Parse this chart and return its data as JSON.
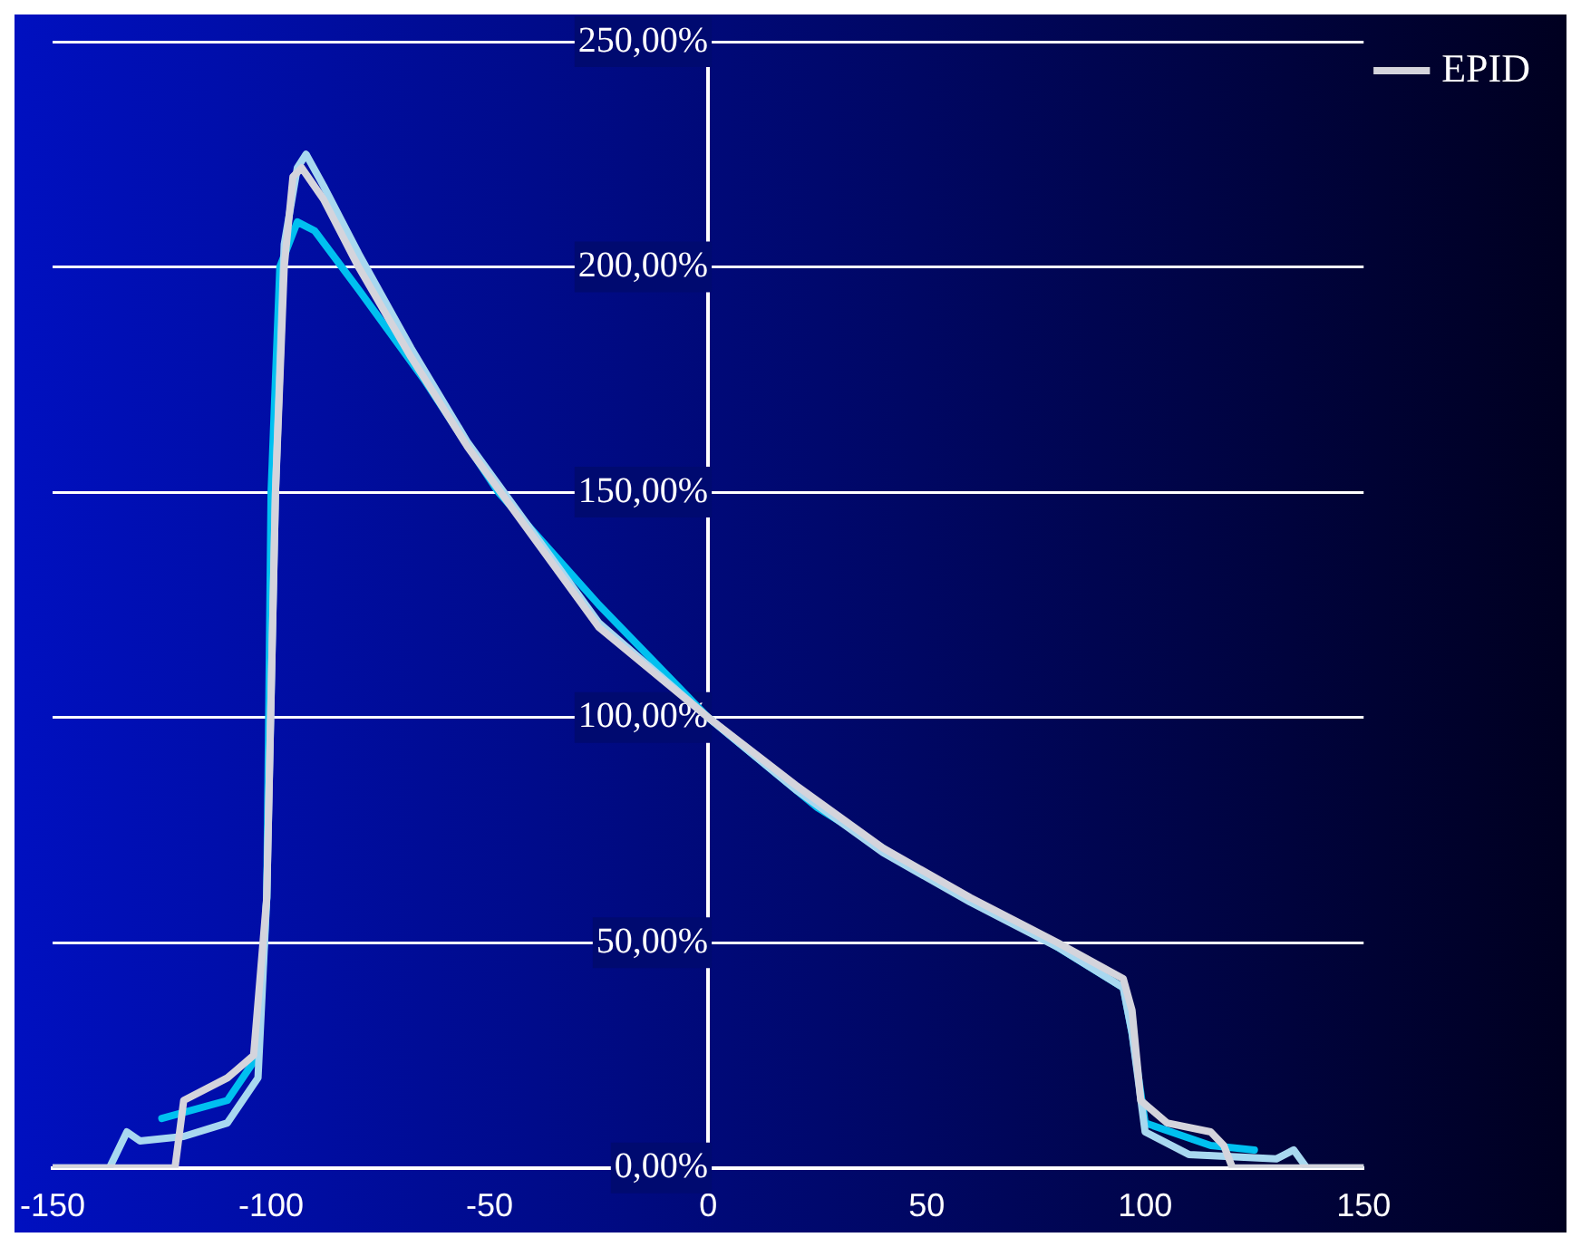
{
  "chart_data": {
    "type": "line",
    "xlim": [
      -150,
      150
    ],
    "xticks": [
      -150,
      -100,
      -50,
      0,
      50,
      100,
      150
    ],
    "ylim": [
      0,
      250
    ],
    "yticks": [
      {
        "value": 0,
        "label": "0,00%"
      },
      {
        "value": 50,
        "label": "50,00%"
      },
      {
        "value": 100,
        "label": "100,00%"
      },
      {
        "value": 150,
        "label": "150,00%"
      },
      {
        "value": 200,
        "label": "200,00%"
      },
      {
        "value": 250,
        "label": "250,00%"
      }
    ],
    "grid": "y",
    "legend": "right",
    "marker": "none",
    "line_style": "solid",
    "series": [
      {
        "name": "EPID",
        "color": "#d4d4dc",
        "x": [
          -150,
          -122,
          -120,
          -110,
          -104,
          -101,
          -99,
          -97,
          -95,
          -93,
          -88,
          -80,
          -68,
          -55,
          -40,
          -25,
          0,
          20,
          40,
          60,
          80,
          95,
          97,
          99,
          105,
          115,
          118,
          120,
          150
        ],
        "values": [
          0,
          0,
          15,
          20,
          25,
          60,
          150,
          200,
          220,
          222,
          215,
          200,
          180,
          160,
          140,
          120,
          100,
          85,
          71,
          60,
          50,
          42,
          35,
          15,
          10,
          8,
          5,
          0,
          0
        ]
      },
      {
        "color": "#a8d8f0",
        "x": [
          -150,
          -137,
          -133,
          -130,
          -120,
          -110,
          -103,
          -101,
          -99,
          -97,
          -94,
          -92,
          -88,
          -80,
          -68,
          -55,
          -40,
          -25,
          0,
          20,
          40,
          60,
          80,
          95,
          97,
          100,
          110,
          130,
          134,
          137,
          150
        ],
        "values": [
          0,
          0,
          8,
          6,
          7,
          10,
          20,
          60,
          150,
          205,
          222,
          225,
          218,
          203,
          182,
          161,
          141,
          121,
          100,
          84,
          70,
          59,
          49,
          40,
          30,
          8,
          3,
          2,
          4,
          0,
          0
        ]
      },
      {
        "color": "#00c0f0",
        "x": [
          -125,
          -110,
          -103,
          -101,
          -100,
          -98,
          -94,
          -90,
          -80,
          -65,
          -48,
          -25,
          0,
          25,
          50,
          75,
          95,
          97,
          100,
          115,
          125
        ],
        "values": [
          11,
          15,
          25,
          60,
          150,
          200,
          210,
          208,
          195,
          175,
          150,
          125,
          100,
          80,
          65,
          52,
          40,
          30,
          10,
          5,
          4
        ]
      }
    ]
  }
}
